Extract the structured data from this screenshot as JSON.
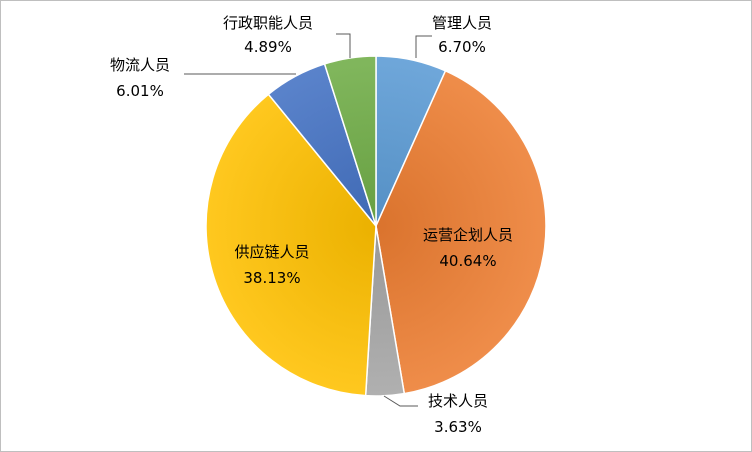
{
  "chart_data": {
    "type": "pie",
    "title": "",
    "legend": "none",
    "start_angle_deg": 0,
    "direction": "clockwise",
    "slices": [
      {
        "label": "管理人员",
        "value": 6.7,
        "value_label": "6.70%",
        "color": "#5b9bd5",
        "label_place": "outside"
      },
      {
        "label": "运营企划人员",
        "value": 40.64,
        "value_label": "40.64%",
        "color": "#ed7d31",
        "label_place": "inside"
      },
      {
        "label": "技术人员",
        "value": 3.63,
        "value_label": "3.63%",
        "color": "#a5a5a5",
        "label_place": "outside"
      },
      {
        "label": "供应链人员",
        "value": 38.13,
        "value_label": "38.13%",
        "color": "#ffc000",
        "label_place": "inside"
      },
      {
        "label": "物流人员",
        "value": 6.01,
        "value_label": "6.01%",
        "color": "#4472c4",
        "label_place": "outside"
      },
      {
        "label": "行政职能人员",
        "value": 4.89,
        "value_label": "4.89%",
        "color": "#70ad47",
        "label_place": "outside"
      }
    ]
  }
}
